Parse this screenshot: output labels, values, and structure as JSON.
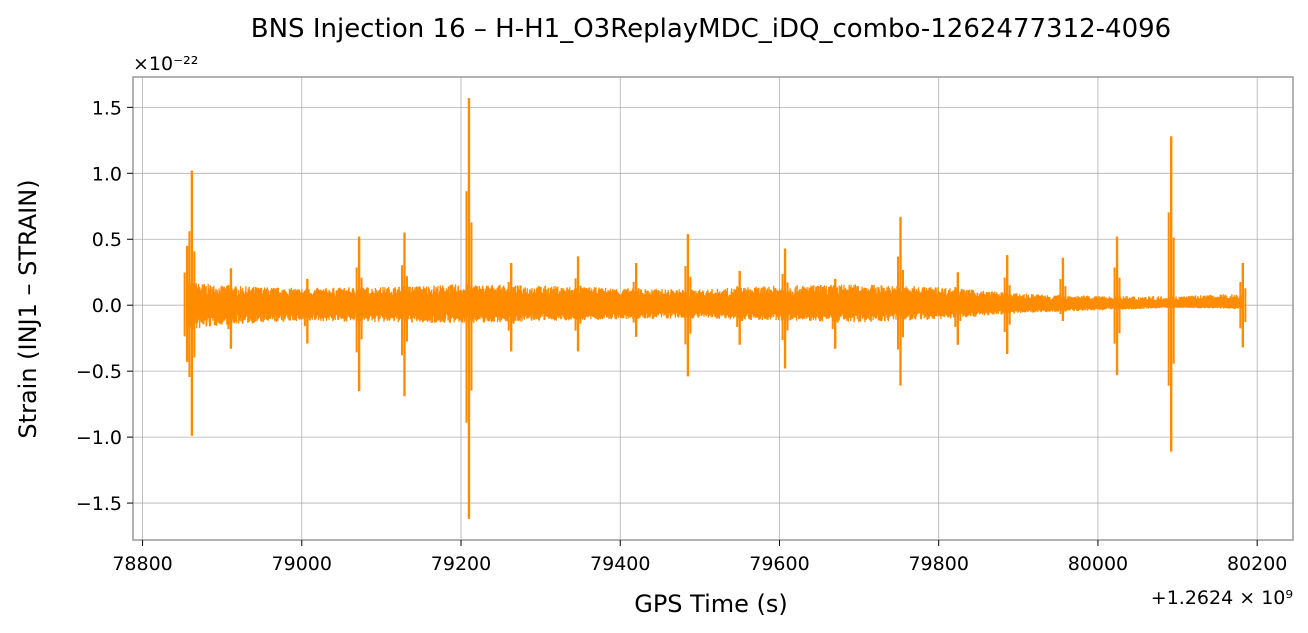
{
  "chart_data": {
    "type": "line",
    "title": "BNS Injection 16 – H-H1_O3ReplayMDC_iDQ_combo-1262477312-4096",
    "xlabel": "GPS Time (s)",
    "ylabel": "Strain (INJ1 – STRAIN)",
    "x_offset_label": "+1.2624 × 10⁹",
    "y_scale_label": "×10⁻²²",
    "xlim": [
      78788,
      80245
    ],
    "ylim": [
      -1.78,
      1.73
    ],
    "x_ticks": [
      78800,
      79000,
      79200,
      79400,
      79600,
      79800,
      80000,
      80200
    ],
    "x_tick_labels": [
      "78800",
      "79000",
      "79200",
      "79400",
      "79600",
      "79800",
      "80000",
      "80200"
    ],
    "y_ticks": [
      -1.5,
      -1.0,
      -0.5,
      0.0,
      0.5,
      1.0,
      1.5
    ],
    "y_tick_labels": [
      "−1.5",
      "−1.0",
      "−0.5",
      "0.0",
      "0.5",
      "1.0",
      "1.5"
    ],
    "grid": true,
    "color": "#ff8c00",
    "x_range": [
      78856,
      80182
    ],
    "envelope": [
      {
        "x": 78856,
        "upper": 0.18,
        "lower": -0.2
      },
      {
        "x": 78900,
        "upper": 0.15,
        "lower": -0.15
      },
      {
        "x": 79000,
        "upper": 0.13,
        "lower": -0.12
      },
      {
        "x": 79100,
        "upper": 0.14,
        "lower": -0.13
      },
      {
        "x": 79200,
        "upper": 0.16,
        "lower": -0.14
      },
      {
        "x": 79300,
        "upper": 0.15,
        "lower": -0.12
      },
      {
        "x": 79400,
        "upper": 0.13,
        "lower": -0.11
      },
      {
        "x": 79500,
        "upper": 0.12,
        "lower": -0.1
      },
      {
        "x": 79600,
        "upper": 0.15,
        "lower": -0.12
      },
      {
        "x": 79700,
        "upper": 0.16,
        "lower": -0.13
      },
      {
        "x": 79800,
        "upper": 0.14,
        "lower": -0.11
      },
      {
        "x": 79900,
        "upper": 0.09,
        "lower": -0.06
      },
      {
        "x": 80000,
        "upper": 0.07,
        "lower": -0.04
      },
      {
        "x": 80100,
        "upper": 0.07,
        "lower": -0.02
      },
      {
        "x": 80182,
        "upper": 0.09,
        "lower": -0.03
      }
    ],
    "glitches": [
      {
        "x": 78856,
        "max": 0.45,
        "min": -0.43
      },
      {
        "x": 78862,
        "max": 1.02,
        "min": -0.99
      },
      {
        "x": 78911,
        "max": 0.28,
        "min": -0.33
      },
      {
        "x": 79007,
        "max": 0.2,
        "min": -0.29
      },
      {
        "x": 79072,
        "max": 0.52,
        "min": -0.65
      },
      {
        "x": 79129,
        "max": 0.55,
        "min": -0.69
      },
      {
        "x": 79210,
        "max": 1.57,
        "min": -1.62
      },
      {
        "x": 79263,
        "max": 0.32,
        "min": -0.35
      },
      {
        "x": 79347,
        "max": 0.37,
        "min": -0.35
      },
      {
        "x": 79420,
        "max": 0.32,
        "min": -0.24
      },
      {
        "x": 79485,
        "max": 0.54,
        "min": -0.54
      },
      {
        "x": 79550,
        "max": 0.26,
        "min": -0.3
      },
      {
        "x": 79607,
        "max": 0.43,
        "min": -0.48
      },
      {
        "x": 79670,
        "max": 0.2,
        "min": -0.33
      },
      {
        "x": 79752,
        "max": 0.67,
        "min": -0.61
      },
      {
        "x": 79824,
        "max": 0.25,
        "min": -0.3
      },
      {
        "x": 79886,
        "max": 0.38,
        "min": -0.37
      },
      {
        "x": 79956,
        "max": 0.36,
        "min": -0.12
      },
      {
        "x": 80024,
        "max": 0.52,
        "min": -0.53
      },
      {
        "x": 80092,
        "max": 1.28,
        "min": -1.11
      },
      {
        "x": 80182,
        "max": 0.32,
        "min": -0.32
      }
    ]
  }
}
